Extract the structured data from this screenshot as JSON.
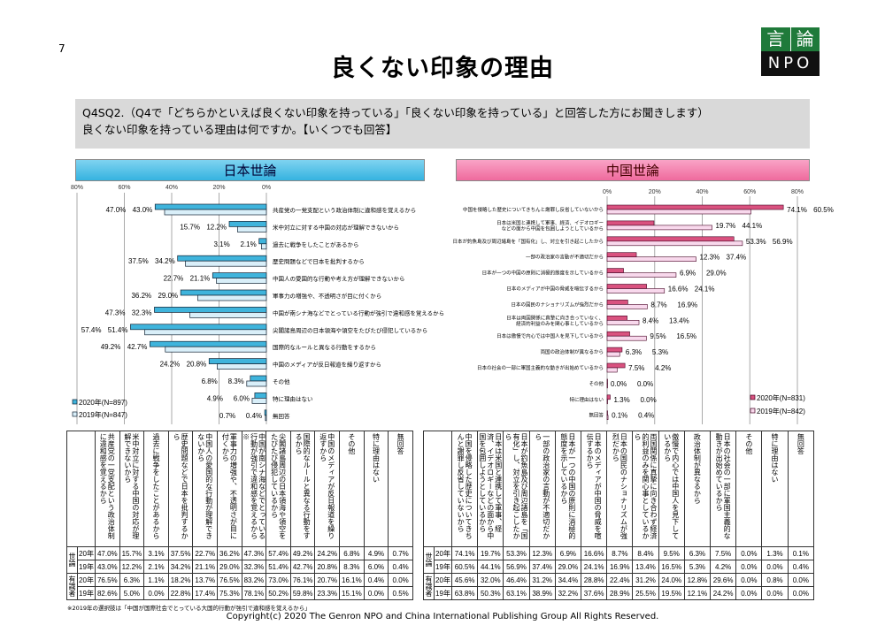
{
  "page_number": "7",
  "title": "良くない印象の理由",
  "logo": {
    "top_left": "言",
    "top_right": "論",
    "bottom": "NPO"
  },
  "question": {
    "line1": "Q4SQ2.（Q4で「どちらかといえば良くない印象を持っている」「良くない印象を持っている」と回答した方にお聞きします）",
    "line2": "良くない印象を持っている理由は何ですか。【いくつでも回答】"
  },
  "colors": {
    "jp_2020": "#3fb4dc",
    "jp_2019": "#d9eff9",
    "cn_2020": "#d9527f",
    "cn_2019": "#f8d8ec",
    "jp_header": "#35b3e0",
    "cn_header": "#ef6a9d"
  },
  "chart_data": [
    {
      "type": "bar",
      "title": "日本世論",
      "orientation": "horizontal-leftward",
      "xlim": [
        0,
        80
      ],
      "ticks": [
        "80%",
        "60%",
        "40%",
        "20%",
        "0%"
      ],
      "grid": true,
      "legend_position": "bottom-left",
      "categories": [
        "共産党の一党支配という政治体制に違和感を覚えるから",
        "米中対立に対する中国の対応が理解できないから",
        "過去に戦争をしたことがあるから",
        "歴史問題などで日本を批判するから",
        "中国人の愛国的な行動や考え方が理解できないから",
        "軍事力の増強や、不透明さが目に付くから",
        "中国が南シナ海などでとっている行動が強引で違和感を覚えるから",
        "尖閣諸島周辺の日本領海や領空をたびたび侵犯しているから",
        "国際的なルールと異なる行動をするから",
        "中国のメディアが反日報道を繰り返すから",
        "その他",
        "特に理由はない",
        "無回答"
      ],
      "series": [
        {
          "name": "2020年(N=897)",
          "values": [
            47.0,
            15.7,
            3.1,
            37.5,
            22.7,
            36.2,
            47.3,
            57.4,
            49.2,
            24.2,
            6.8,
            4.9,
            0.7
          ]
        },
        {
          "name": "2019年(N=847)",
          "values": [
            43.0,
            12.2,
            2.1,
            34.2,
            21.1,
            29.0,
            32.3,
            51.4,
            42.7,
            20.8,
            8.3,
            6.0,
            0.4
          ]
        }
      ]
    },
    {
      "type": "bar",
      "title": "中国世論",
      "orientation": "horizontal",
      "xlim": [
        0,
        80
      ],
      "ticks": [
        "0%",
        "20%",
        "40%",
        "60%",
        "80%"
      ],
      "grid": true,
      "legend_position": "bottom-right",
      "categories": [
        "中国を侵略した歴史についてきちんと謝罪し反省していないから",
        "日本は米国と連携して軍事、経済、イデオロギー|などの面から中国を包囲しようとしているから",
        "日本が釣魚島及び周辺諸島を「国有化」し、対立を引き起こしたから",
        "一部の政治家の言動が不適切だから",
        "日本が一つの中国の原則に消極的態度を示しているから",
        "日本のメディアが中国の脅威を喧伝するから",
        "日本の国民のナショナリズムが強烈だから",
        "日本は両国関係に真摯に向き合っていなく、|経済的利益のみを関心事としているから",
        "日本は傲慢で内心では中国人を見下しているから",
        "両国の政治体制が異なるから",
        "日本の社会の一部に軍国主義的な動きが出始めているから",
        "その他",
        "特に理由はない",
        "無回答"
      ],
      "series": [
        {
          "name": "2020年(N=831)",
          "values": [
            74.1,
            19.7,
            53.3,
            12.3,
            6.9,
            16.6,
            8.7,
            8.4,
            9.5,
            6.3,
            7.5,
            0.0,
            1.3,
            0.1
          ]
        },
        {
          "name": "2019年(N=842)",
          "values": [
            60.5,
            44.1,
            56.9,
            37.4,
            29.0,
            24.1,
            16.9,
            13.4,
            16.5,
            5.3,
            4.2,
            0.0,
            0.0,
            0.4
          ]
        }
      ]
    }
  ],
  "tables": [
    {
      "headers": [
        "共産党の一党支配という政治体制に違和感を覚えるから",
        "米中対立に対する中国の対応が理解できないから",
        "過去に戦争をしたことがあるから",
        "歴史問題などで日本を批判するから",
        "中国人の愛国的な行動が理解できないから",
        "軍事力の増強や、不透明さが目に付くから",
        "中国が南シナ海などでとっている行動が強引で違和感を覚えるから※",
        "尖閣諸島周辺の日本領海や領空をたびたび侵犯しているから",
        "国際的なルールと異なる行動をするから",
        "中国のメディアが反日報道を繰り返すから",
        "その他",
        "特に理由はない",
        "無回答"
      ],
      "groups": [
        "世論",
        "有識者"
      ],
      "rows": [
        {
          "year": "20年",
          "values": [
            "47.0%",
            "15.7%",
            "3.1%",
            "37.5%",
            "22.7%",
            "36.2%",
            "47.3%",
            "57.4%",
            "49.2%",
            "24.2%",
            "6.8%",
            "4.9%",
            "0.7%"
          ]
        },
        {
          "year": "19年",
          "values": [
            "43.0%",
            "12.2%",
            "2.1%",
            "34.2%",
            "21.1%",
            "29.0%",
            "32.3%",
            "51.4%",
            "42.7%",
            "20.8%",
            "8.3%",
            "6.0%",
            "0.4%"
          ]
        },
        {
          "year": "20年",
          "values": [
            "76.5%",
            "6.3%",
            "1.1%",
            "18.2%",
            "13.7%",
            "76.5%",
            "83.2%",
            "73.0%",
            "76.1%",
            "20.7%",
            "16.1%",
            "0.4%",
            "0.0%"
          ]
        },
        {
          "year": "19年",
          "values": [
            "82.6%",
            "5.0%",
            "0.0%",
            "22.8%",
            "17.4%",
            "75.3%",
            "78.1%",
            "50.2%",
            "59.8%",
            "23.3%",
            "15.1%",
            "0.0%",
            "0.5%"
          ]
        }
      ]
    },
    {
      "headers": [
        "中国を侵略した歴史についてきちんと謝罪し反省していないから",
        "日本は米国と連携して軍事、経済、イデオロギーなどの面から中国を包囲しようとしているから",
        "日本が釣魚島及び周辺諸島を「国有化」し、対立を引き起こしたから",
        "一部の政治家の言動が不適切だから",
        "日本が一つの中国の原則に消極的態度を示しているから",
        "日本のメディアが中国の脅威を喧伝するから",
        "日本の国民のナショナリズムが強烈だから",
        "両国関係に真摯に向き合わず経済的利益のみを関心事としているから",
        "傲慢で内心では中国人を見下しているから",
        "政治体制が異なるから",
        "日本の社会の一部に軍国主義的な動きが出始めているから",
        "その他",
        "特に理由はない",
        "無回答"
      ],
      "groups": [
        "世論",
        "有識者"
      ],
      "rows": [
        {
          "year": "20年",
          "values": [
            "74.1%",
            "19.7%",
            "53.3%",
            "12.3%",
            "6.9%",
            "16.6%",
            "8.7%",
            "8.4%",
            "9.5%",
            "6.3%",
            "7.5%",
            "0.0%",
            "1.3%",
            "0.1%"
          ]
        },
        {
          "year": "19年",
          "values": [
            "60.5%",
            "44.1%",
            "56.9%",
            "37.4%",
            "29.0%",
            "24.1%",
            "16.9%",
            "13.4%",
            "16.5%",
            "5.3%",
            "4.2%",
            "0.0%",
            "0.0%",
            "0.4%"
          ]
        },
        {
          "year": "20年",
          "values": [
            "45.6%",
            "32.0%",
            "46.4%",
            "31.2%",
            "34.4%",
            "28.8%",
            "22.4%",
            "31.2%",
            "24.0%",
            "12.8%",
            "29.6%",
            "0.0%",
            "0.8%",
            "0.0%"
          ]
        },
        {
          "year": "19年",
          "values": [
            "63.8%",
            "50.3%",
            "63.1%",
            "38.9%",
            "32.2%",
            "37.6%",
            "28.9%",
            "25.5%",
            "19.5%",
            "12.1%",
            "24.2%",
            "0.0%",
            "0.0%",
            "0.0%"
          ]
        }
      ]
    }
  ],
  "footnote": "※2019年の選択肢は「中国が国際社会でとっている大国的行動が強引で違和感を覚えるから」",
  "copyright": "Copyright(c) 2020 The Genron NPO and China International Publishing Group All Rights Reserved."
}
